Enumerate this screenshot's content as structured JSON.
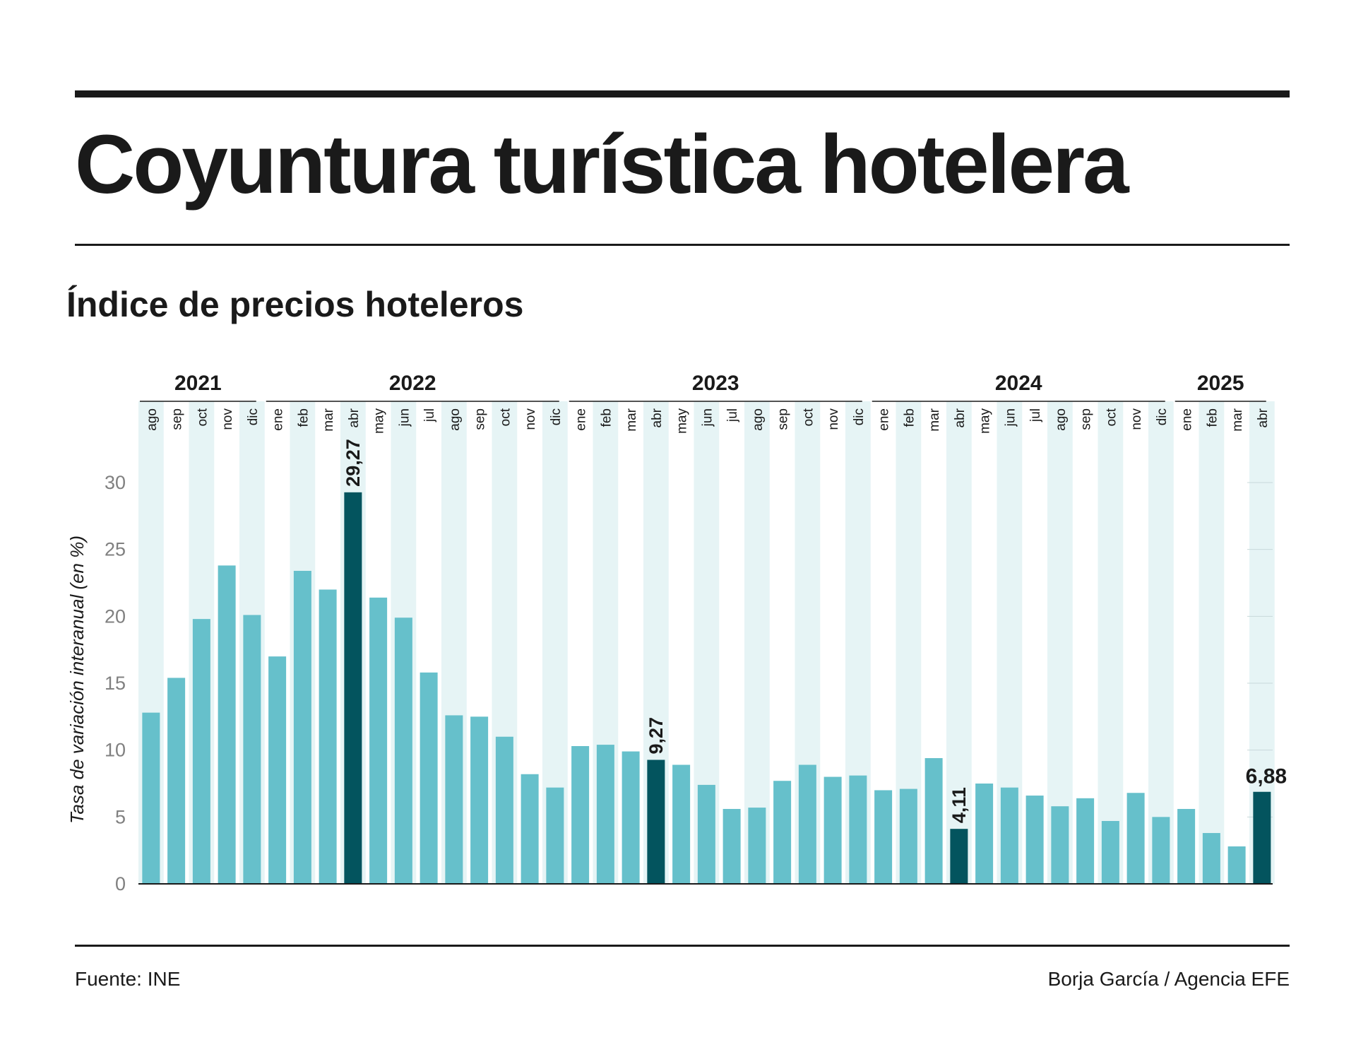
{
  "header": {
    "title": "Coyuntura turística hotelera",
    "subtitle": "Índice de precios hoteleros"
  },
  "footer": {
    "source": "Fuente: INE",
    "credit": "Borja García / Agencia EFE"
  },
  "colors": {
    "bar": "#66c0cb",
    "highlight": "#03545e",
    "stripe": "#e6f4f5",
    "text": "#1a1a1a",
    "axis_text": "#808080"
  },
  "chart_data": {
    "type": "bar",
    "ylabel": "Tasa de variación interanual (en %)",
    "ylim": [
      0,
      30
    ],
    "yticks": [
      0,
      5,
      10,
      15,
      20,
      25,
      30
    ],
    "years": [
      {
        "label": "2021",
        "months": 5
      },
      {
        "label": "2022",
        "months": 12
      },
      {
        "label": "2023",
        "months": 12
      },
      {
        "label": "2024",
        "months": 12
      },
      {
        "label": "2025",
        "months": 4
      }
    ],
    "categories": [
      "ago",
      "sep",
      "oct",
      "nov",
      "dic",
      "ene",
      "feb",
      "mar",
      "abr",
      "may",
      "jun",
      "jul",
      "ago",
      "sep",
      "oct",
      "nov",
      "dic",
      "ene",
      "feb",
      "mar",
      "abr",
      "may",
      "jun",
      "jul",
      "ago",
      "sep",
      "oct",
      "nov",
      "dic",
      "ene",
      "feb",
      "mar",
      "abr",
      "may",
      "jun",
      "jul",
      "ago",
      "sep",
      "oct",
      "nov",
      "dic",
      "ene",
      "feb",
      "mar",
      "abr"
    ],
    "values": [
      12.8,
      15.4,
      19.8,
      23.8,
      20.1,
      17.0,
      23.4,
      22.0,
      29.27,
      21.4,
      19.9,
      15.8,
      12.6,
      12.5,
      11.0,
      8.2,
      7.2,
      10.3,
      10.4,
      9.9,
      9.27,
      8.9,
      7.4,
      5.6,
      5.7,
      7.7,
      8.9,
      8.0,
      8.1,
      7.0,
      7.1,
      9.4,
      4.11,
      7.5,
      7.2,
      6.6,
      5.8,
      6.4,
      4.7,
      6.8,
      5.0,
      5.6,
      3.8,
      2.8,
      6.88
    ],
    "highlight_indices": [
      8,
      20,
      32,
      44
    ],
    "data_labels": [
      {
        "index": 8,
        "text": "29,27"
      },
      {
        "index": 20,
        "text": "9,27"
      },
      {
        "index": 32,
        "text": "4,11"
      },
      {
        "index": 44,
        "text": "6,88"
      }
    ],
    "grid": false
  }
}
